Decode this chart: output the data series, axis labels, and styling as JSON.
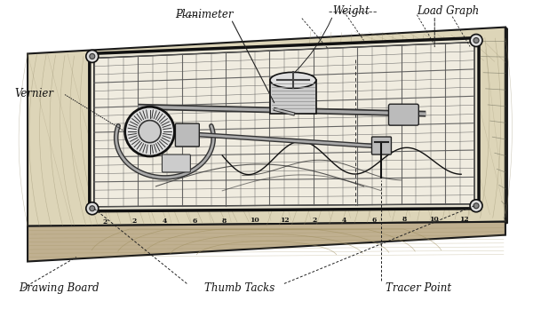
{
  "background_color": "#ffffff",
  "fig_width": 6.0,
  "fig_height": 3.48,
  "dpi": 100,
  "labels": {
    "planimeter": "Planimeter",
    "weight": "Weight",
    "load_graph": "Load Graph",
    "vernier": "Vernier",
    "drawing_board": "Drawing Board",
    "thumb_tacks": "Thumb Tacks",
    "tracer_point": "Tracer Point"
  },
  "tick_numbers": [
    "2",
    "2",
    "4",
    "6",
    "8",
    "10",
    "12",
    "2",
    "4",
    "6",
    "8",
    "10",
    "12"
  ],
  "line_color": "#1a1a1a",
  "grid_color": "#333333",
  "board_fill": "#e8e0cc",
  "board_edge_fill": "#c8b898",
  "paper_fill": "#f5f2ea",
  "wood_grain_color": "#999070",
  "annotation_color": "#222222"
}
